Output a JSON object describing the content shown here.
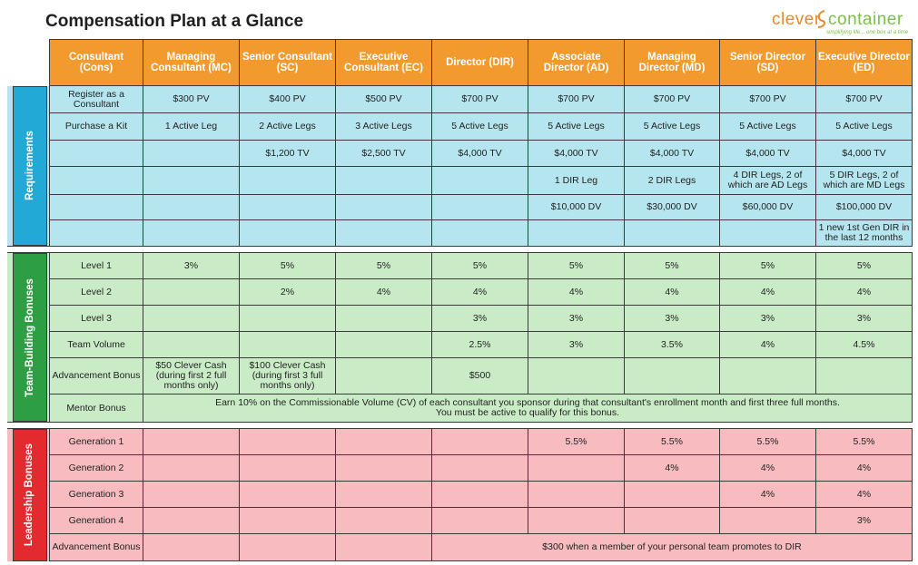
{
  "title": "Compensation Plan at a Glance",
  "logo": {
    "word1": "clever",
    "word2": "container",
    "tagline": "simplifying life... one box at a time"
  },
  "colors": {
    "header": "#f29a2e",
    "requirements": "#b5e6ef",
    "team_building": "#c9ecc7",
    "leadership": "#f8bcc0"
  },
  "columns": [
    "Consultant (Cons)",
    "Managing Consultant (MC)",
    "Senior Consultant (SC)",
    "Executive Consultant (EC)",
    "Director (DIR)",
    "Associate Director (AD)",
    "Managing Director (MD)",
    "Senior Director (SD)",
    "Executive Director (ED)"
  ],
  "sections": {
    "requirements": {
      "title": "Requirements",
      "rows": [
        [
          "Register as a Consultant",
          "$300 PV",
          "$400 PV",
          "$500 PV",
          "$700 PV",
          "$700 PV",
          "$700 PV",
          "$700 PV",
          "$700 PV"
        ],
        [
          "Purchase a Kit",
          "1 Active Leg",
          "2 Active Legs",
          "3 Active Legs",
          "5 Active Legs",
          "5 Active Legs",
          "5 Active Legs",
          "5 Active Legs",
          "5 Active Legs"
        ],
        [
          "",
          "",
          "$1,200 TV",
          "$2,500 TV",
          "$4,000 TV",
          "$4,000 TV",
          "$4,000 TV",
          "$4,000 TV",
          "$4,000 TV"
        ],
        [
          "",
          "",
          "",
          "",
          "",
          "1 DIR Leg",
          "2 DIR Legs",
          "4 DIR Legs, 2 of which are AD Legs",
          "5 DIR Legs, 2 of which are MD Legs"
        ],
        [
          "",
          "",
          "",
          "",
          "",
          "$10,000 DV",
          "$30,000 DV",
          "$60,000 DV",
          "$100,000 DV"
        ],
        [
          "",
          "",
          "",
          "",
          "",
          "",
          "",
          "",
          "1 new 1st Gen DIR in the last 12 months"
        ]
      ]
    },
    "team_building": {
      "title": "Team-Building Bonuses",
      "rows": [
        [
          "Level 1",
          "3%",
          "5%",
          "5%",
          "5%",
          "5%",
          "5%",
          "5%",
          "5%"
        ],
        [
          "Level 2",
          "",
          "2%",
          "4%",
          "4%",
          "4%",
          "4%",
          "4%",
          "4%"
        ],
        [
          "Level 3",
          "",
          "",
          "",
          "3%",
          "3%",
          "3%",
          "3%",
          "3%"
        ],
        [
          "Team Volume",
          "",
          "",
          "",
          "2.5%",
          "3%",
          "3.5%",
          "4%",
          "4.5%"
        ],
        [
          "Advancement Bonus",
          "$50 Clever Cash (during first 2 full months only)",
          "$100 Clever Cash (during first 3 full months only)",
          "",
          "$500",
          "",
          "",
          "",
          ""
        ]
      ],
      "mentor": {
        "label": "Mentor Bonus",
        "line1": "Earn 10% on the Commissionable Volume (CV) of each consultant you sponsor during that consultant's enrollment month and first three full months.",
        "line2": "You must be active to qualify for this bonus."
      }
    },
    "leadership": {
      "title": "Leadership Bonuses",
      "rows": [
        [
          "Generation 1",
          "",
          "",
          "",
          "",
          "5.5%",
          "5.5%",
          "5.5%",
          "5.5%"
        ],
        [
          "Generation 2",
          "",
          "",
          "",
          "",
          "",
          "4%",
          "4%",
          "4%"
        ],
        [
          "Generation 3",
          "",
          "",
          "",
          "",
          "",
          "",
          "4%",
          "4%"
        ],
        [
          "Generation 4",
          "",
          "",
          "",
          "",
          "",
          "",
          "",
          "3%"
        ]
      ],
      "advancement": {
        "label": "Advancement Bonus",
        "text": "$300 when a member of your personal team promotes to DIR"
      }
    }
  }
}
